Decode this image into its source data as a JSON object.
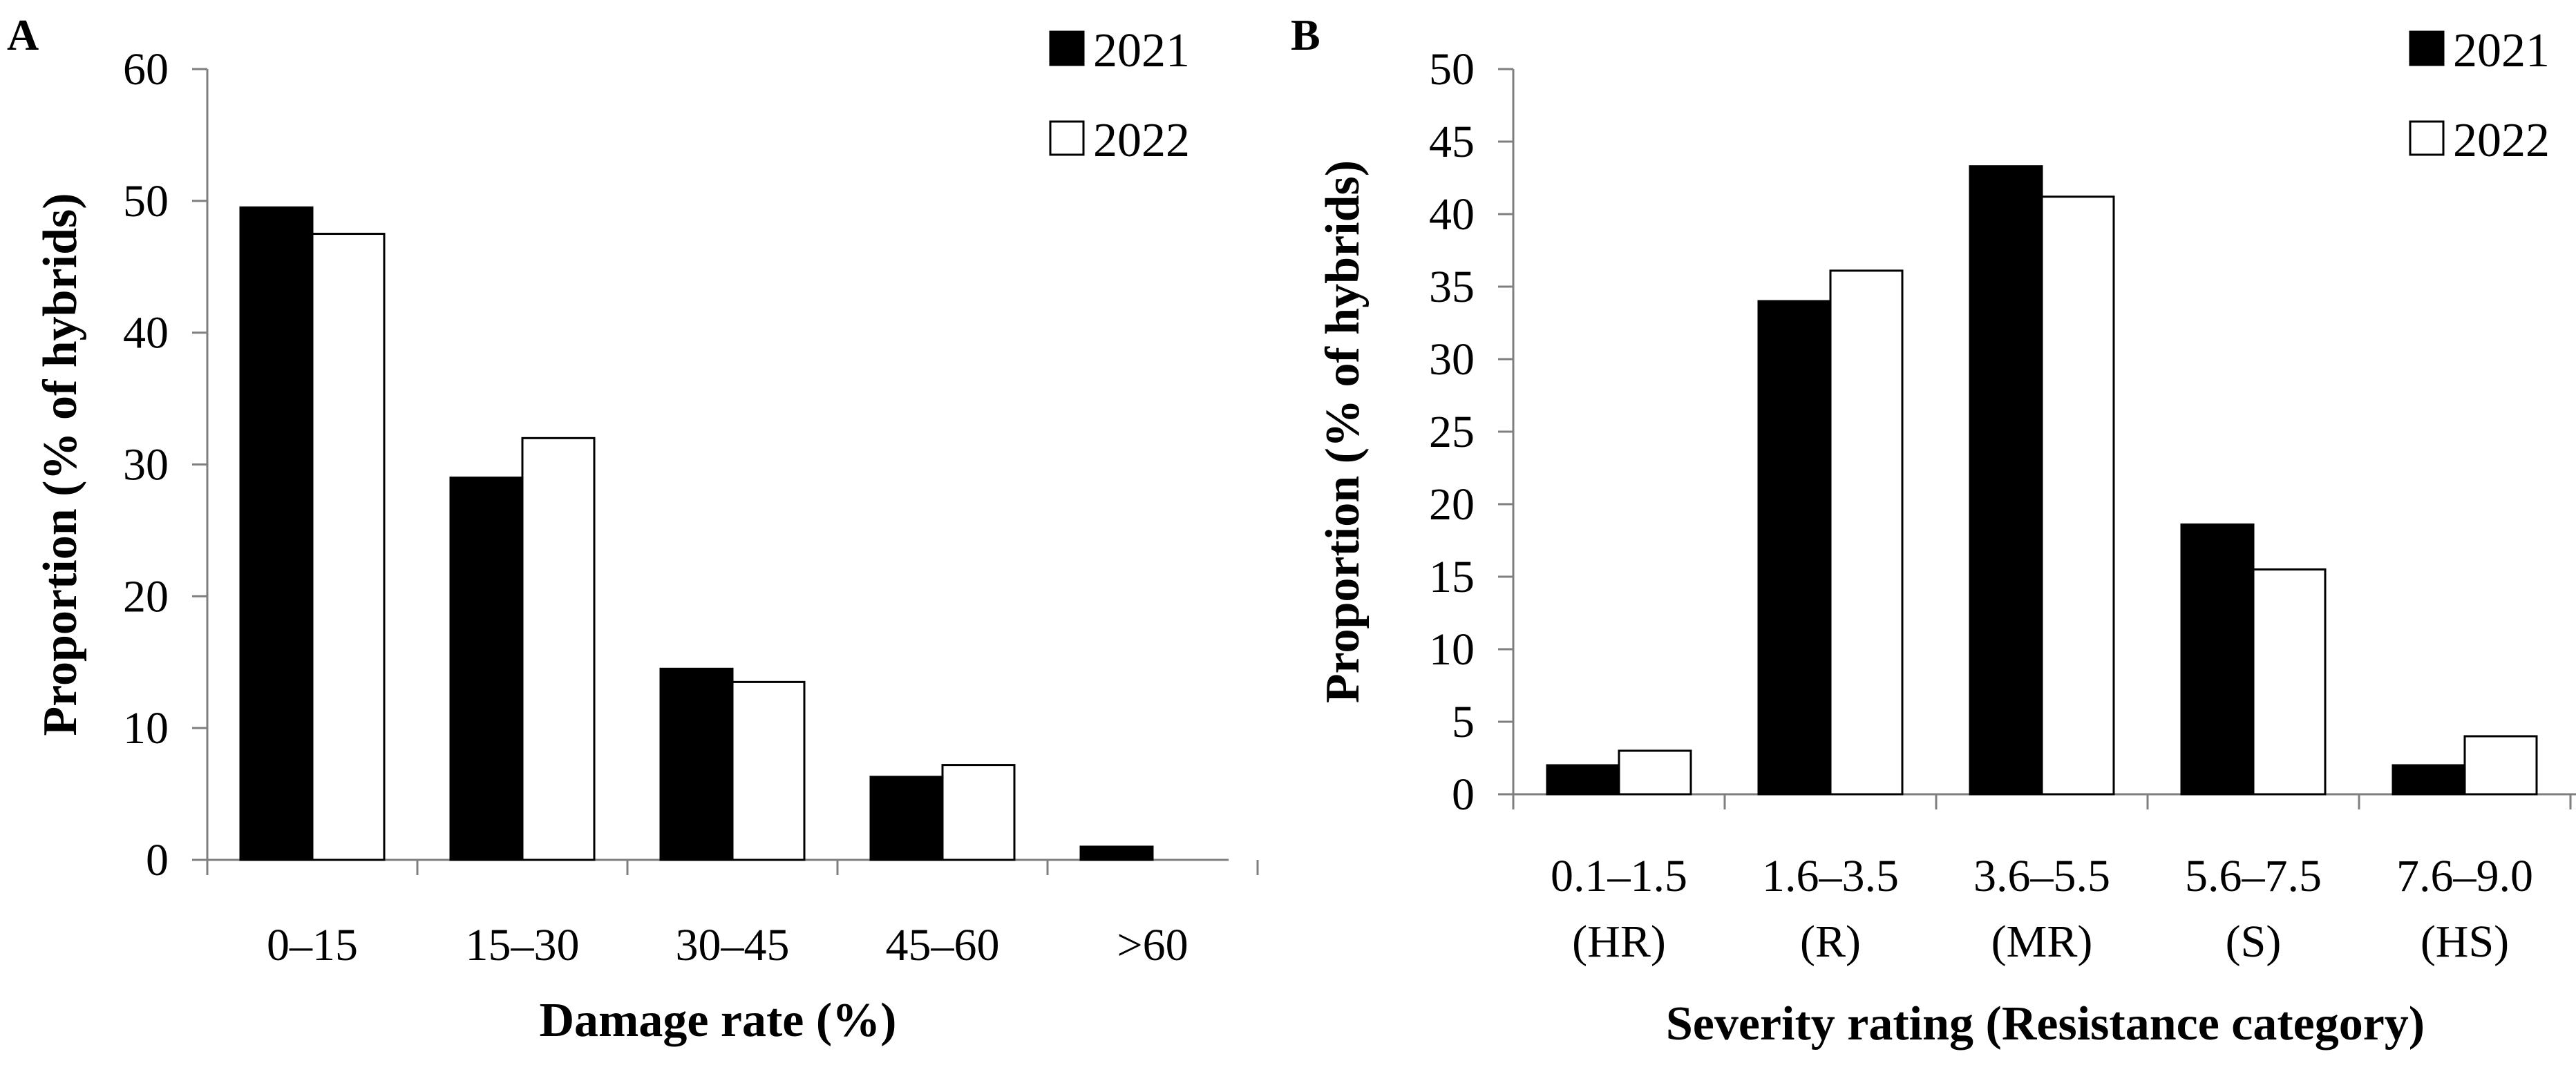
{
  "chart_data": [
    {
      "panel": "A",
      "type": "bar",
      "xlabel": "Damage rate (%)",
      "ylabel": "Proportion (% of hybrids)",
      "ylim": [
        0,
        60
      ],
      "yticks": [
        "0",
        "10",
        "20",
        "30",
        "40",
        "50",
        "60"
      ],
      "categories": [
        [
          "0–15"
        ],
        [
          "15–30"
        ],
        [
          "30–45"
        ],
        [
          "45–60"
        ],
        [
          ">60"
        ]
      ],
      "series": [
        {
          "name": "2021",
          "color": "#000000",
          "values": [
            49.5,
            29,
            14.5,
            6.3,
            1
          ]
        },
        {
          "name": "2022",
          "color": "#ffffff",
          "values": [
            47.5,
            32,
            13.5,
            7.2,
            0
          ]
        }
      ],
      "legend": "top-right"
    },
    {
      "panel": "B",
      "type": "bar",
      "xlabel": "Severity rating (Resistance category)",
      "ylabel": "Proportion (% of hybrids)",
      "ylim": [
        0,
        50
      ],
      "yticks": [
        "0",
        "5",
        "10",
        "15",
        "20",
        "25",
        "30",
        "35",
        "40",
        "45",
        "50"
      ],
      "categories": [
        [
          "0.1–1.5",
          "(HR)"
        ],
        [
          "1.6–3.5",
          "(R)"
        ],
        [
          "3.6–5.5",
          "(MR)"
        ],
        [
          "5.6–7.5",
          "(S)"
        ],
        [
          "7.6–9.0",
          "(HS)"
        ]
      ],
      "series": [
        {
          "name": "2021",
          "color": "#000000",
          "values": [
            2,
            34,
            43.3,
            18.6,
            2
          ]
        },
        {
          "name": "2022",
          "color": "#ffffff",
          "values": [
            3,
            36.1,
            41.2,
            15.5,
            4
          ]
        }
      ],
      "legend": "top-right"
    }
  ]
}
